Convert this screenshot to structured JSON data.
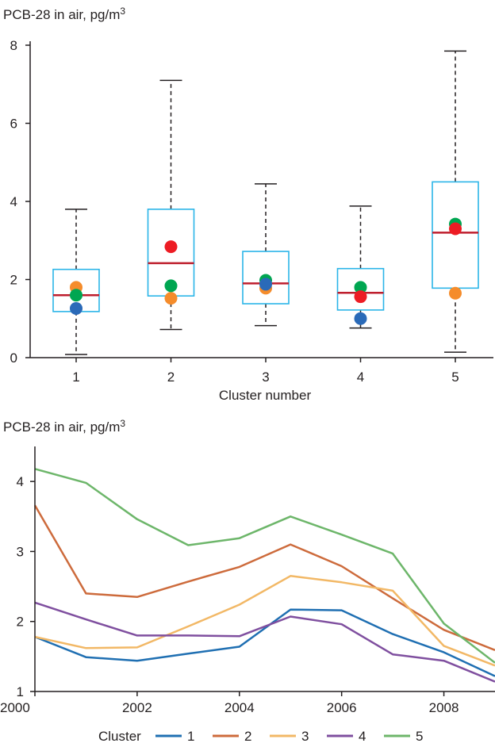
{
  "chart_data": [
    {
      "type": "box",
      "ylabel_prefix": "PCB-28 in air, pg/m",
      "ylabel_sup": "3",
      "xlabel": "Cluster number",
      "ylim": [
        0,
        8
      ],
      "yticks": [
        "0",
        "2",
        "4",
        "6",
        "8"
      ],
      "categories": [
        "1",
        "2",
        "3",
        "4",
        "5"
      ],
      "boxes": [
        {
          "whisker_low": 0.08,
          "q1": 1.18,
          "median": 1.6,
          "q3": 2.26,
          "whisker_high": 3.8
        },
        {
          "whisker_low": 0.72,
          "q1": 1.58,
          "median": 2.42,
          "q3": 3.8,
          "whisker_high": 7.1
        },
        {
          "whisker_low": 0.82,
          "q1": 1.38,
          "median": 1.9,
          "q3": 2.72,
          "whisker_high": 4.45
        },
        {
          "whisker_low": 0.76,
          "q1": 1.22,
          "median": 1.66,
          "q3": 2.28,
          "whisker_high": 3.88
        },
        {
          "whisker_low": 0.14,
          "q1": 1.78,
          "median": 3.2,
          "q3": 4.5,
          "whisker_high": 7.85
        }
      ],
      "points": [
        {
          "color": "#f58c2b",
          "values": [
            1.8,
            1.52,
            1.78,
            null,
            1.65
          ]
        },
        {
          "color": "#00a651",
          "values": [
            1.6,
            1.84,
            1.98,
            1.8,
            3.42
          ]
        },
        {
          "color": "#2a6ab8",
          "values": [
            1.26,
            null,
            1.88,
            1.0,
            null
          ]
        },
        {
          "color": "#ed1c24",
          "values": [
            null,
            2.84,
            null,
            1.56,
            3.3
          ]
        }
      ],
      "colors": {
        "box": "#2bb5e8",
        "median": "#be1e2d",
        "whisker": "#231f20"
      }
    },
    {
      "type": "line",
      "ylabel_prefix": "PCB-28 in air, pg/m",
      "ylabel_sup": "3",
      "xlim": [
        2000,
        2009
      ],
      "ylim": [
        1,
        4.5
      ],
      "xticks": [
        "2000",
        "2002",
        "2004",
        "2006",
        "2008"
      ],
      "yticks": [
        "1",
        "2",
        "3",
        "4"
      ],
      "x": [
        2000,
        2001,
        2002,
        2003,
        2004,
        2005,
        2006,
        2007,
        2008,
        2009
      ],
      "legend_title": "Cluster",
      "series": [
        {
          "name": "1",
          "color": "#1f6fb2",
          "values": [
            1.78,
            1.49,
            1.44,
            1.54,
            1.64,
            2.17,
            2.16,
            1.82,
            1.56,
            1.22
          ]
        },
        {
          "name": "2",
          "color": "#cd6b3c",
          "values": [
            3.66,
            2.4,
            2.35,
            2.57,
            2.78,
            3.1,
            2.79,
            2.33,
            1.88,
            1.59
          ]
        },
        {
          "name": "3",
          "color": "#f2b866",
          "values": [
            1.78,
            1.62,
            1.63,
            1.93,
            2.24,
            2.65,
            2.56,
            2.44,
            1.65,
            1.37
          ]
        },
        {
          "name": "4",
          "color": "#7f4f9f",
          "values": [
            2.27,
            2.03,
            1.8,
            1.8,
            1.79,
            2.07,
            1.96,
            1.53,
            1.44,
            1.14
          ]
        },
        {
          "name": "5",
          "color": "#6db66a",
          "values": [
            4.18,
            3.98,
            3.46,
            3.09,
            3.19,
            3.5,
            3.24,
            2.97,
            1.97,
            1.41
          ]
        }
      ]
    }
  ]
}
